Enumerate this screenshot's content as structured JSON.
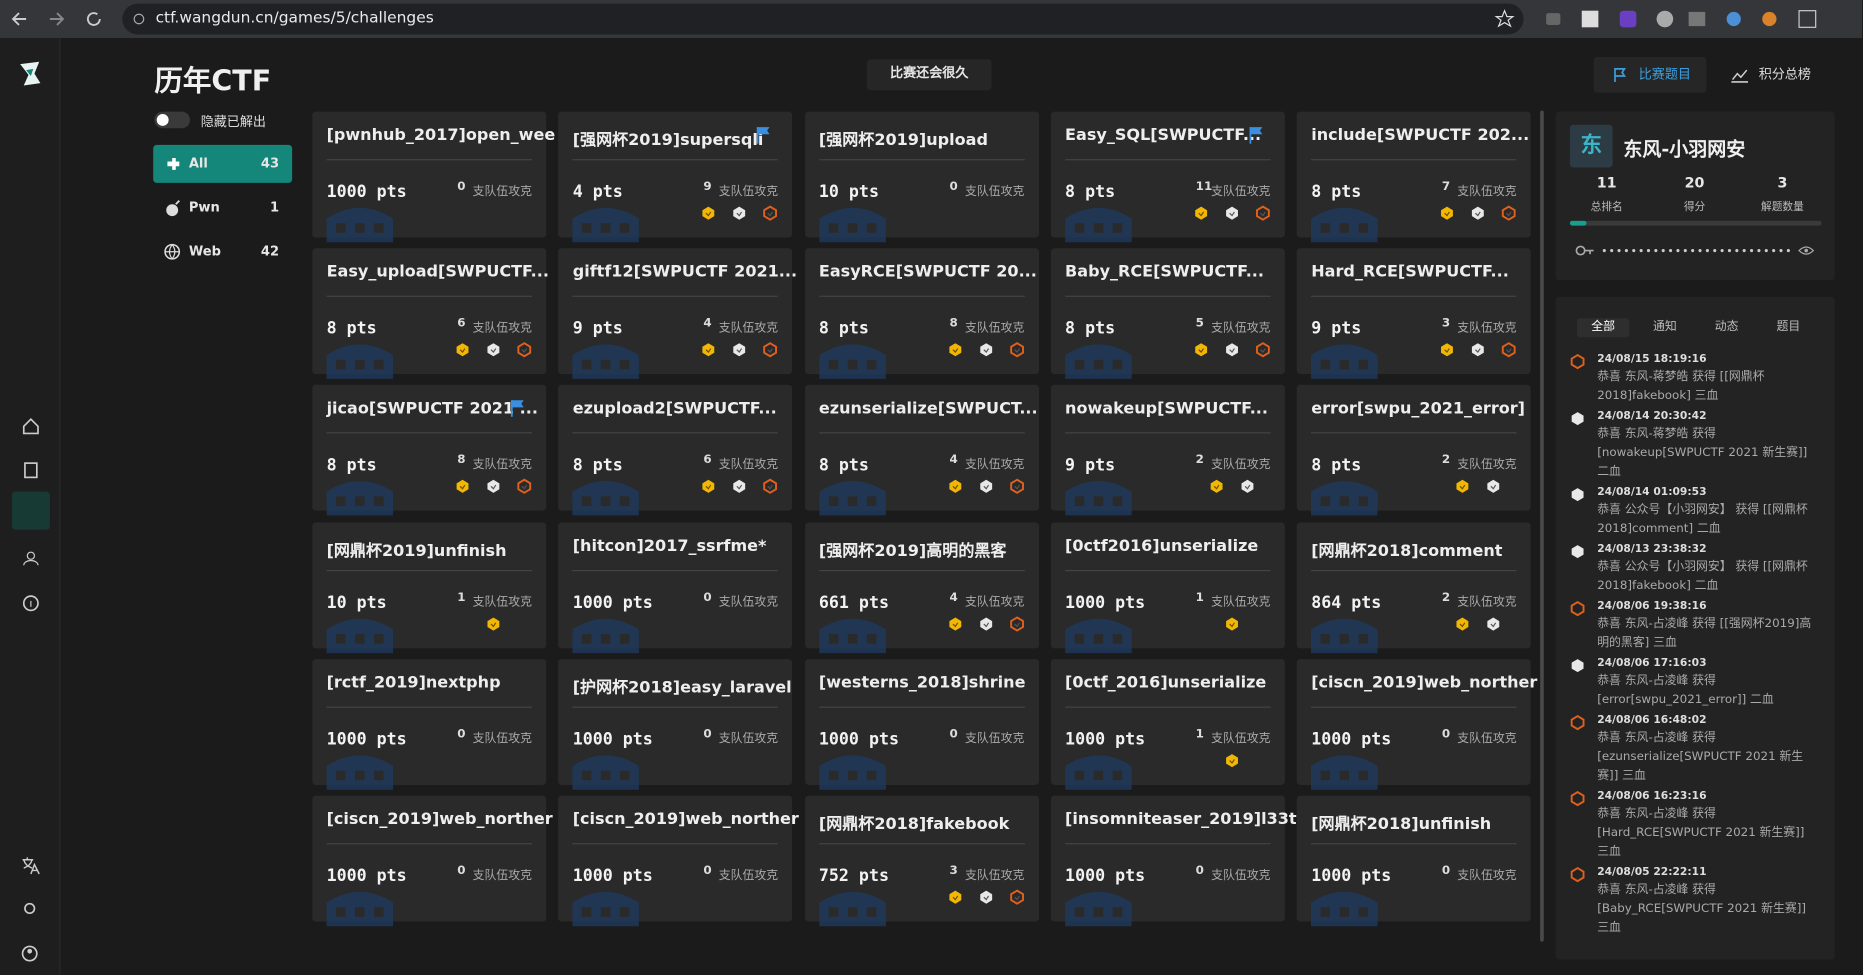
{
  "browser": {
    "url": "ctf.wangdun.cn/games/5/challenges"
  },
  "header": {
    "title": "历年CTF",
    "hide_solved": "隐藏已解出",
    "countdown": "比赛还会很久",
    "tabs": [
      "比赛题目",
      "积分总榜"
    ]
  },
  "categories": [
    {
      "name": "All",
      "count": 43
    },
    {
      "name": "Pwn",
      "count": 1
    },
    {
      "name": "Web",
      "count": 42
    }
  ],
  "challenges": {
    "solved_label": "支队伍攻克",
    "items": [
      {
        "title": "[pwnhub_2017]open_wee",
        "score": "1000 pts",
        "solves": 0,
        "bloods": 0,
        "flag": false
      },
      {
        "title": "[强网杯2019]supersqli",
        "score": "4 pts",
        "solves": 9,
        "bloods": 3,
        "flag": true
      },
      {
        "title": "[强网杯2019]upload",
        "score": "10 pts",
        "solves": 0,
        "bloods": 0,
        "flag": false
      },
      {
        "title": "Easy_SQL[SWPUCTF...",
        "score": "8 pts",
        "solves": 11,
        "bloods": 3,
        "flag": true
      },
      {
        "title": "include[SWPUCTF 202...",
        "score": "8 pts",
        "solves": 7,
        "bloods": 3,
        "flag": false
      },
      {
        "title": "Easy_upload[SWPUCTF...",
        "score": "8 pts",
        "solves": 6,
        "bloods": 3,
        "flag": false
      },
      {
        "title": "giftf12[SWPUCTF 2021...",
        "score": "9 pts",
        "solves": 4,
        "bloods": 3,
        "flag": false
      },
      {
        "title": "EasyRCE[SWPUCTF 20...",
        "score": "8 pts",
        "solves": 8,
        "bloods": 3,
        "flag": false
      },
      {
        "title": "Baby_RCE[SWPUCTF...",
        "score": "8 pts",
        "solves": 5,
        "bloods": 3,
        "flag": false
      },
      {
        "title": "Hard_RCE[SWPUCTF...",
        "score": "9 pts",
        "solves": 3,
        "bloods": 3,
        "flag": false
      },
      {
        "title": "jicao[SWPUCTF 2021 ...",
        "score": "8 pts",
        "solves": 8,
        "bloods": 3,
        "flag": true
      },
      {
        "title": "ezupload2[SWPUCTF...",
        "score": "8 pts",
        "solves": 6,
        "bloods": 3,
        "flag": false
      },
      {
        "title": "ezunserialize[SWPUCT...",
        "score": "8 pts",
        "solves": 4,
        "bloods": 3,
        "flag": false
      },
      {
        "title": "nowakeup[SWPUCTF...",
        "score": "9 pts",
        "solves": 2,
        "bloods": 2,
        "flag": false
      },
      {
        "title": "error[swpu_2021_error]",
        "score": "8 pts",
        "solves": 2,
        "bloods": 2,
        "flag": false
      },
      {
        "title": "[网鼎杯2019]unfinish",
        "score": "10 pts",
        "solves": 1,
        "bloods": 1,
        "flag": false
      },
      {
        "title": "[hitcon]2017_ssrfme*",
        "score": "1000 pts",
        "solves": 0,
        "bloods": 0,
        "flag": false
      },
      {
        "title": "[强网杯2019]高明的黑客",
        "score": "661 pts",
        "solves": 4,
        "bloods": 3,
        "flag": false
      },
      {
        "title": "[0ctf2016]unserialize",
        "score": "1000 pts",
        "solves": 1,
        "bloods": 1,
        "flag": false
      },
      {
        "title": "[网鼎杯2018]comment",
        "score": "864 pts",
        "solves": 2,
        "bloods": 2,
        "flag": false
      },
      {
        "title": "[rctf_2019]nextphp",
        "score": "1000 pts",
        "solves": 0,
        "bloods": 0,
        "flag": false
      },
      {
        "title": "[护网杯2018]easy_laravel",
        "score": "1000 pts",
        "solves": 0,
        "bloods": 0,
        "flag": false
      },
      {
        "title": "[westerns_2018]shrine",
        "score": "1000 pts",
        "solves": 0,
        "bloods": 0,
        "flag": false
      },
      {
        "title": "[0ctf_2016]unserialize",
        "score": "1000 pts",
        "solves": 1,
        "bloods": 1,
        "flag": false
      },
      {
        "title": "[ciscn_2019]web_norther",
        "score": "1000 pts",
        "solves": 0,
        "bloods": 0,
        "flag": false
      },
      {
        "title": "[ciscn_2019]web_norther",
        "score": "1000 pts",
        "solves": 0,
        "bloods": 0,
        "flag": false
      },
      {
        "title": "[ciscn_2019]web_norther",
        "score": "1000 pts",
        "solves": 0,
        "bloods": 0,
        "flag": false
      },
      {
        "title": "[网鼎杯2018]fakebook",
        "score": "752 pts",
        "solves": 3,
        "bloods": 3,
        "flag": false
      },
      {
        "title": "[insomniteaser_2019]l33t",
        "score": "1000 pts",
        "solves": 0,
        "bloods": 0,
        "flag": false
      },
      {
        "title": "[网鼎杯2018]unfinish",
        "score": "1000 pts",
        "solves": 0,
        "bloods": 0,
        "flag": false
      }
    ]
  },
  "team": {
    "avatar": "东",
    "name": "东风-小羽网安",
    "stats": [
      {
        "value": 11,
        "label": "总排名"
      },
      {
        "value": 20,
        "label": "得分"
      },
      {
        "value": 3,
        "label": "解题数量"
      }
    ]
  },
  "feed": {
    "tabs": [
      "全部",
      "通知",
      "动态",
      "题目"
    ],
    "items": [
      {
        "time": "24/08/15 18:19:16",
        "text": "恭喜 东风-蒋梦皓 获得 [[网鼎杯2018]fakebook] 三血",
        "blood": 3
      },
      {
        "time": "24/08/14 20:30:42",
        "text": "恭喜 东风-蒋梦皓 获得 [nowakeup[SWPUCTF 2021 新生赛]] 二血",
        "blood": 2
      },
      {
        "time": "24/08/14 01:09:53",
        "text": "恭喜 公众号【小羽网安】 获得 [[网鼎杯2018]comment] 二血",
        "blood": 2
      },
      {
        "time": "24/08/13 23:38:32",
        "text": "恭喜 公众号【小羽网安】 获得 [[网鼎杯2018]fakebook] 二血",
        "blood": 2
      },
      {
        "time": "24/08/06 19:38:16",
        "text": "恭喜 东风-占凌峰 获得 [[强网杯2019]高明的黑客] 三血",
        "blood": 3
      },
      {
        "time": "24/08/06 17:16:03",
        "text": "恭喜 东风-占凌峰 获得 [error[swpu_2021_error]] 二血",
        "blood": 2
      },
      {
        "time": "24/08/06 16:48:02",
        "text": "恭喜 东风-占凌峰 获得 [ezunserialize[SWPUCTF 2021 新生赛]] 三血",
        "blood": 3
      },
      {
        "time": "24/08/06 16:23:16",
        "text": "恭喜 东风-占凌峰 获得 [Hard_RCE[SWPUCTF 2021 新生赛]] 三血",
        "blood": 3
      },
      {
        "time": "24/08/05 22:22:11",
        "text": "恭喜 东风-占凌峰 获得 [Baby_RCE[SWPUCTF 2021 新生赛]] 三血",
        "blood": 3
      }
    ]
  }
}
